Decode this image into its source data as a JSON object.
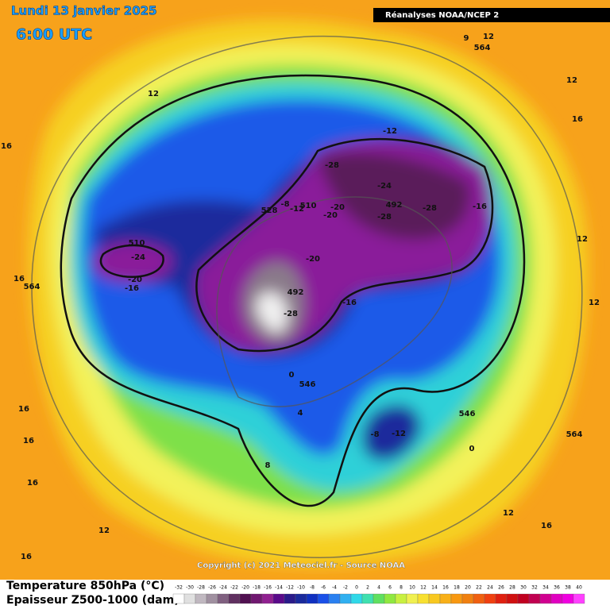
{
  "header": {
    "date": "Lundi 13 janvier 2025",
    "time": "6:00 UTC",
    "source": "Réanalyses NOAA/NCEP 2"
  },
  "credit": "Copyright (c) 2021 Meteociel.fr - Source NOAA",
  "legend": {
    "title1": "Temperature 850hPa (°C)",
    "title2": "Epaisseur Z500-1000 (dam)",
    "scale": [
      -32,
      -30,
      -28,
      -26,
      -24,
      -22,
      -20,
      -18,
      -16,
      -14,
      -12,
      -10,
      -8,
      -6,
      -4,
      -2,
      0,
      2,
      4,
      6,
      8,
      10,
      12,
      14,
      16,
      18,
      20,
      22,
      24,
      26,
      28,
      30,
      32,
      34,
      36,
      38,
      40
    ]
  },
  "map_labels": [
    -28,
    -24,
    492,
    -28,
    -28,
    -16,
    -12,
    -20,
    -20,
    510,
    -12,
    -8,
    528,
    -20,
    492,
    -28,
    -16,
    510,
    -24,
    -20,
    -16,
    564,
    16,
    16,
    12,
    9,
    12,
    564,
    12,
    16,
    12,
    12,
    0,
    546,
    4,
    8,
    -8,
    -12,
    546,
    564,
    0,
    12,
    16,
    12,
    16,
    16,
    16,
    16
  ]
}
